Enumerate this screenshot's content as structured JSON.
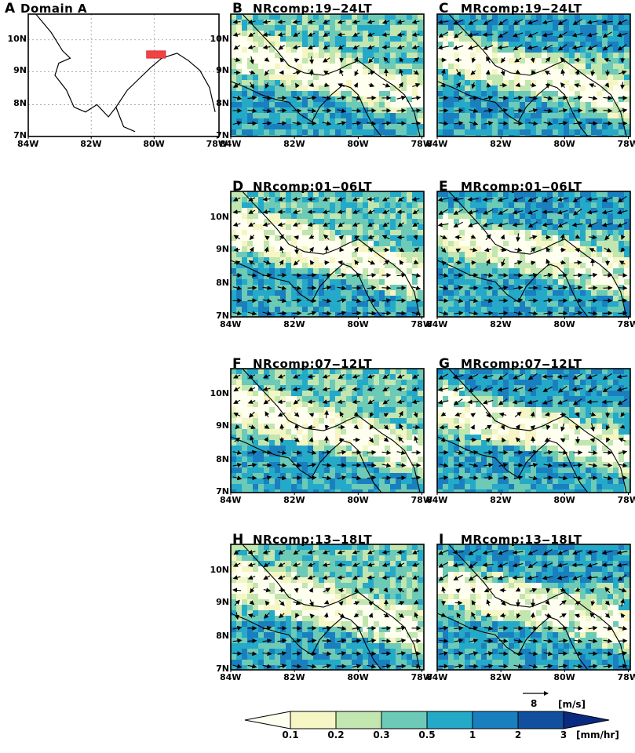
{
  "panels": [
    {
      "letter": "A",
      "title": "Domain A"
    },
    {
      "letter": "B",
      "title": "NRcomp:19‒24LT"
    },
    {
      "letter": "C",
      "title": "MRcomp:19‒24LT"
    },
    {
      "letter": "D",
      "title": "NRcomp:01‒06LT"
    },
    {
      "letter": "E",
      "title": "MRcomp:01‒06LT"
    },
    {
      "letter": "F",
      "title": "NRcomp:07‒12LT"
    },
    {
      "letter": "G",
      "title": "MRcomp:07‒12LT"
    },
    {
      "letter": "H",
      "title": "NRcomp:13‒18LT"
    },
    {
      "letter": "I",
      "title": "MRcomp:13‒18LT"
    }
  ],
  "axes": {
    "lon_ticks": [
      "84W",
      "82W",
      "80W",
      "78W"
    ],
    "lat_ticks": [
      "7N",
      "8N",
      "9N",
      "10N"
    ]
  },
  "vector_key": {
    "value": "8",
    "unit": "[m/s]"
  },
  "colorbar": {
    "labels": [
      "0.1",
      "0.2",
      "0.3",
      "0.5",
      "1",
      "2",
      "3"
    ],
    "unit": "[mm/hr]",
    "colors": [
      "#fffff0",
      "#f5f6c4",
      "#c2e6b0",
      "#6ccab7",
      "#25a9c8",
      "#1a7fbf",
      "#11509e",
      "#0a2a82"
    ]
  }
}
